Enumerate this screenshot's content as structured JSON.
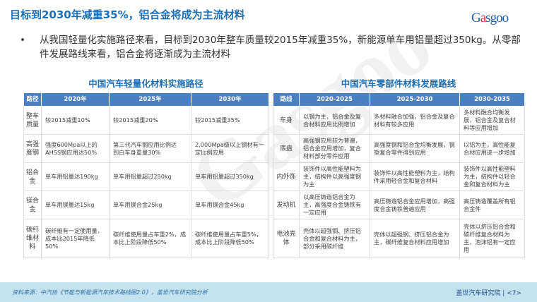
{
  "header": {
    "title": "目标到2030年减重35%，铝合金将成为主流材料",
    "logo_text": "Gasgoo",
    "logo_sub": "盖世汽车研究院"
  },
  "bullet": {
    "symbol": "•",
    "text": "从我国轻量化实施路径来看，目标到2030年整车质量较2015年减重35%，新能源单车用铝量超过350kg。从零部件发展路线来看，铝合金将逐渐成为主流材料"
  },
  "left_table": {
    "title": "中国汽车轻量化材料实施路径",
    "headers": [
      "路径",
      "2020年",
      "2025年",
      "2030年"
    ],
    "rows": [
      [
        "整车质量",
        "较2015减重10%",
        "较2015减重20%",
        "较2015减重35%"
      ],
      [
        "高强度钢",
        "强度600Mpa以上的AHSS钢应用达50%",
        "第三代汽车钢应用比例达\n到白车身重量30%",
        "2,000Mpa级以上钢材有一定比例应用"
      ],
      [
        "铝合金",
        "单车用铝量达190kg",
        "单车用铝量超过250kg",
        "单车用铝量超过350kg"
      ],
      [
        "镁合金",
        "单车用镁量达15kg",
        "单车用镁合金25kg",
        "单车用镁合金45kg"
      ],
      [
        "碳纤维材料",
        "碳纤维有一定使用量，成本比2015年降低50%",
        "碳纤维使用量占车重2%，成本比上阶段降低50%",
        "碳纤维使用量占车重5%，成本比上阶段降低50%"
      ]
    ]
  },
  "right_table": {
    "title": "中国汽车零部件材料发展路线",
    "headers": [
      "路线",
      "2020-2025",
      "2025-2030",
      "2030-2035"
    ],
    "rows": [
      [
        "车身",
        "以钢为主，铝合金及复合材料应用比例增加",
        "多材料融合加强，铝合金及复合材料有较多应用",
        "多材料融合均衡发展，铝合金及复合材料等应用增加"
      ],
      [
        "底盘",
        "高强钢应用较为普遍，铝合金应用增加，复合材料部分零件应用",
        "高强度钢和铝合金均衡发展，钢塑复合零件得到应用",
        "以铝为主，高性能复合材应用进一步增加"
      ],
      [
        "内外饰",
        "装饰件以高性能塑料为主，结构件以高强度钢为主",
        "装饰件以高性能塑料为主，结构件采用轻合金和复合材料",
        "装饰件以高性能塑料为主，结构件以轻合金和复合材料为主"
      ],
      [
        "发动机",
        "以高压铸造铝合金为主，高强度合金铸铁有一定应用",
        "高压铸造铝合金应用增加，高强度合金铸铁普遍应用",
        "高压铸造覆盖所有铝合金件"
      ],
      [
        "电池壳体",
        "壳体以超强钢、挤压铝合金和复合材料为主，部分采用碳纤维",
        "壳体以超强钢、挤压铝合金为主，碳纤维复合材料应用增加",
        "壳体以挤压铝合金和碳纤维复合材料为主，泡沫铝有一定应用"
      ]
    ]
  },
  "footer": {
    "source": "资料来源：中汽协《节能与新能源汽车技术路线图2.0》，盖世汽车研究院分析",
    "org": "盖世汽车研究院",
    "page": "<7>"
  },
  "colors": {
    "title": "#1f6fb5",
    "table_header": "#4a7fc1",
    "footer_bg": "#c5e3ee"
  }
}
